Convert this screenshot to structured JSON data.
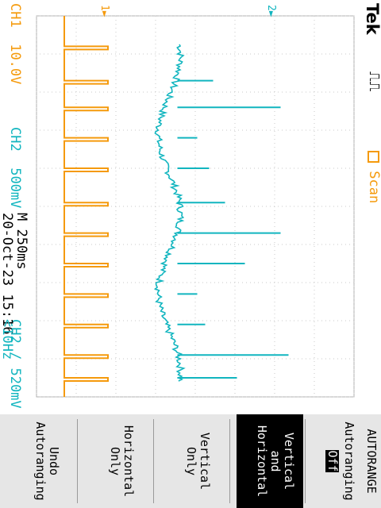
{
  "brand": "Tek",
  "trigger_status_icon": "trigger-pulse-icon",
  "markers": {
    "ch2": "2",
    "ch1": "1"
  },
  "acquire": {
    "scan_label": "Scan"
  },
  "channels": {
    "ch1": {
      "label": "CH1",
      "scale": "10.0V",
      "color": "#f59a0c"
    },
    "ch2": {
      "label": "CH2",
      "scale": "500mV",
      "color": "#11b5bf"
    }
  },
  "timebase": {
    "label": "M 250ms"
  },
  "datetime": "20-Oct-23 15:16",
  "trigger": {
    "source": "CH2",
    "slope_icon": "rising-edge-icon",
    "level": "520mV",
    "frequency": "<10Hz"
  },
  "menu": {
    "title": "AUTORANGE",
    "items": [
      {
        "line1": "Autoranging",
        "line2": "Off"
      },
      {
        "line1": "Vertical",
        "line2": "and",
        "line3": "Horizontal"
      },
      {
        "line1": "Vertical",
        "line2": "Only"
      },
      {
        "line1": "Horizontal",
        "line2": "Only"
      },
      {
        "line1": "Undo",
        "line2": "Autoranging"
      }
    ]
  },
  "chart_data": {
    "type": "line",
    "title": "",
    "xlabel": "",
    "ylabel": "",
    "x_divisions": 10,
    "y_divisions": 8,
    "series": [
      {
        "name": "CH1",
        "color": "#f59a0c",
        "baseline_div": -3.3,
        "pulse_height_div": 1.1,
        "pulse_times_div": [
          0.8,
          1.7,
          2.4,
          3.2,
          4.0,
          4.9,
          5.7,
          6.5,
          7.3,
          8.1,
          8.9,
          9.5
        ]
      },
      {
        "name": "CH2",
        "color": "#11b5bf",
        "baseline_div": -0.75,
        "spike_times_div": [
          1.7,
          2.4,
          3.2,
          4.0,
          4.9,
          5.7,
          6.5,
          7.3,
          8.1,
          8.9,
          9.5
        ],
        "spike_heights_div": [
          1.2,
          2.9,
          0.8,
          1.1,
          1.5,
          2.9,
          2.0,
          0.8,
          1.0,
          3.1,
          1.8
        ]
      }
    ]
  }
}
